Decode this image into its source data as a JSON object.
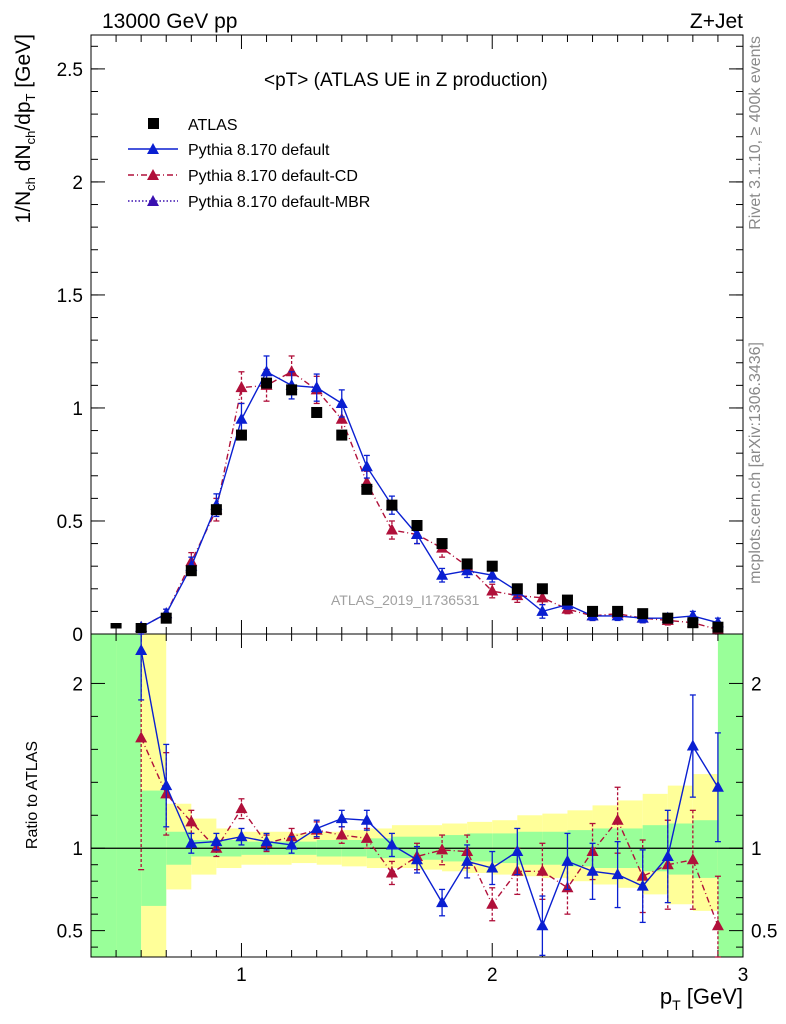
{
  "header": {
    "left": "13000 GeV pp",
    "right": "Z+Jet"
  },
  "side": {
    "top": "Rivet 3.1.10, ≥ 400k events",
    "bottom": "mcplots.cern.ch [arXiv:1306.3436]"
  },
  "colors": {
    "data": "#000000",
    "default": "#0a1fd1",
    "cd": "#b0103a",
    "mbr": "#3a10b0",
    "band_inner": "#99ff99",
    "band_outer": "#ffff99",
    "watermark": "#a0a0a0"
  },
  "chart_data": [
    {
      "type": "line",
      "title": "<pT> (ATLAS UE in Z production)",
      "ylabel": "1/N_ch dN_ch/dp_T [GeV]",
      "xlim": [
        0.4,
        3.0
      ],
      "ylim": [
        0,
        2.65
      ],
      "yticks": [
        "0",
        "0.5",
        "1",
        "1.5",
        "2",
        "2.5"
      ],
      "watermark": "ATLAS_2019_I1736531",
      "legend": [
        "ATLAS",
        "Pythia 8.170 default",
        "Pythia 8.170 default-CD",
        "Pythia 8.170 default-MBR"
      ],
      "legend_position": "top-left",
      "x": [
        0.5,
        0.6,
        0.7,
        0.8,
        0.9,
        1.0,
        1.1,
        1.2,
        1.3,
        1.4,
        1.5,
        1.6,
        1.7,
        1.8,
        1.9,
        2.0,
        2.1,
        2.2,
        2.3,
        2.4,
        2.5,
        2.6,
        2.7,
        2.8,
        2.9
      ],
      "series": [
        {
          "name": "ATLAS",
          "style": "marker",
          "values": [
            0.0,
            0.02,
            0.07,
            0.28,
            0.55,
            0.88,
            1.11,
            1.08,
            0.98,
            0.88,
            0.64,
            0.57,
            0.48,
            0.4,
            0.31,
            0.3,
            0.2,
            0.2,
            0.15,
            0.1,
            0.1,
            0.09,
            0.07,
            0.05,
            0.03
          ]
        },
        {
          "name": "Pythia 8.170 default",
          "style": "solid",
          "values": [
            null,
            0.03,
            0.09,
            0.3,
            0.57,
            0.95,
            1.16,
            1.1,
            1.09,
            1.02,
            0.74,
            0.57,
            0.44,
            0.26,
            0.28,
            0.26,
            0.19,
            0.1,
            0.13,
            0.08,
            0.08,
            0.07,
            0.07,
            0.08,
            0.05
          ]
        },
        {
          "name": "Pythia 8.170 default-CD",
          "style": "dashdot",
          "values": [
            null,
            0.03,
            0.09,
            0.32,
            0.55,
            1.09,
            1.1,
            1.16,
            1.08,
            0.95,
            0.67,
            0.46,
            0.44,
            0.38,
            0.3,
            0.19,
            0.17,
            0.16,
            0.11,
            0.08,
            0.09,
            0.07,
            0.06,
            0.05,
            0.02
          ]
        }
      ],
      "errors": {
        "Pythia 8.170 default": [
          null,
          0.01,
          0.02,
          0.04,
          0.05,
          0.07,
          0.07,
          0.06,
          0.06,
          0.06,
          0.05,
          0.04,
          0.04,
          0.03,
          0.03,
          0.03,
          0.03,
          0.03,
          0.02,
          0.02,
          0.02,
          0.02,
          0.02,
          0.02,
          0.02
        ],
        "Pythia 8.170 default-CD": [
          null,
          0.01,
          0.02,
          0.04,
          0.05,
          0.07,
          0.07,
          0.07,
          0.06,
          0.06,
          0.05,
          0.04,
          0.04,
          0.04,
          0.03,
          0.03,
          0.03,
          0.03,
          0.02,
          0.02,
          0.02,
          0.02,
          0.02,
          0.02,
          0.02
        ]
      }
    },
    {
      "type": "line",
      "ylabel": "Ratio to ATLAS",
      "xlabel": "p_T [GeV]",
      "xlim": [
        0.4,
        3.0
      ],
      "ylim": [
        0.34,
        2.3
      ],
      "yticks": [
        "0.5",
        "1",
        "2"
      ],
      "xticks": [
        "1",
        "2",
        "3"
      ],
      "x": [
        0.6,
        0.7,
        0.8,
        0.9,
        1.0,
        1.1,
        1.2,
        1.3,
        1.4,
        1.5,
        1.6,
        1.7,
        1.8,
        1.9,
        2.0,
        2.1,
        2.2,
        2.3,
        2.4,
        2.5,
        2.6,
        2.7,
        2.8,
        2.9
      ],
      "series": [
        {
          "name": "Pythia 8.170 default",
          "style": "solid",
          "values": [
            2.2,
            1.38,
            1.03,
            1.04,
            1.07,
            1.04,
            1.02,
            1.12,
            1.18,
            1.17,
            1.02,
            0.93,
            0.67,
            0.92,
            0.88,
            0.98,
            0.53,
            0.92,
            0.86,
            0.84,
            0.77,
            0.95,
            1.62,
            1.37
          ],
          "errors": [
            0.3,
            0.25,
            0.06,
            0.05,
            0.05,
            0.05,
            0.05,
            0.05,
            0.05,
            0.06,
            0.07,
            0.08,
            0.08,
            0.1,
            0.1,
            0.14,
            0.18,
            0.17,
            0.17,
            0.2,
            0.22,
            0.28,
            0.31,
            0.33
          ]
        },
        {
          "name": "Pythia 8.170 default-CD",
          "style": "dashdot",
          "values": [
            1.67,
            1.33,
            1.16,
            1.0,
            1.24,
            1.03,
            1.07,
            1.11,
            1.08,
            1.06,
            0.85,
            0.95,
            0.99,
            0.98,
            0.66,
            0.86,
            0.86,
            0.76,
            0.98,
            1.17,
            0.83,
            0.9,
            0.93,
            0.53
          ],
          "errors": [
            0.8,
            0.25,
            0.07,
            0.05,
            0.06,
            0.05,
            0.05,
            0.05,
            0.05,
            0.06,
            0.07,
            0.08,
            0.09,
            0.1,
            0.1,
            0.14,
            0.17,
            0.16,
            0.17,
            0.2,
            0.22,
            0.27,
            0.3,
            0.3
          ]
        }
      ],
      "bands": {
        "edges": [
          0.4,
          0.5,
          0.6,
          0.7,
          0.8,
          0.9,
          1.0,
          1.1,
          1.2,
          1.3,
          1.4,
          1.5,
          1.6,
          1.7,
          1.8,
          1.9,
          2.0,
          2.1,
          2.2,
          2.3,
          2.4,
          2.5,
          2.6,
          2.7,
          2.8,
          2.9,
          3.0
        ],
        "green": [
          [
            0.34,
            2.3
          ],
          [
            0.34,
            2.3
          ],
          [
            0.65,
            1.35
          ],
          [
            0.9,
            1.1
          ],
          [
            0.95,
            1.05
          ],
          [
            0.95,
            1.05
          ],
          [
            0.96,
            1.04
          ],
          [
            0.96,
            1.04
          ],
          [
            0.96,
            1.04
          ],
          [
            0.95,
            1.05
          ],
          [
            0.95,
            1.05
          ],
          [
            0.94,
            1.06
          ],
          [
            0.94,
            1.07
          ],
          [
            0.93,
            1.07
          ],
          [
            0.92,
            1.08
          ],
          [
            0.92,
            1.09
          ],
          [
            0.91,
            1.09
          ],
          [
            0.9,
            1.1
          ],
          [
            0.9,
            1.1
          ],
          [
            0.89,
            1.11
          ],
          [
            0.88,
            1.12
          ],
          [
            0.88,
            1.12
          ],
          [
            0.86,
            1.14
          ],
          [
            0.84,
            1.15
          ],
          [
            0.82,
            1.17
          ],
          [
            0.34,
            2.3
          ]
        ],
        "yellow": [
          [
            0.34,
            2.3
          ],
          [
            0.34,
            2.3
          ],
          [
            0.34,
            2.3
          ],
          [
            0.75,
            1.27
          ],
          [
            0.84,
            1.18
          ],
          [
            0.88,
            1.12
          ],
          [
            0.9,
            1.1
          ],
          [
            0.9,
            1.1
          ],
          [
            0.91,
            1.09
          ],
          [
            0.9,
            1.1
          ],
          [
            0.89,
            1.11
          ],
          [
            0.88,
            1.12
          ],
          [
            0.88,
            1.14
          ],
          [
            0.87,
            1.14
          ],
          [
            0.86,
            1.15
          ],
          [
            0.85,
            1.16
          ],
          [
            0.84,
            1.17
          ],
          [
            0.83,
            1.2
          ],
          [
            0.82,
            1.21
          ],
          [
            0.8,
            1.23
          ],
          [
            0.78,
            1.26
          ],
          [
            0.76,
            1.29
          ],
          [
            0.72,
            1.33
          ],
          [
            0.66,
            1.38
          ],
          [
            0.62,
            1.45
          ],
          [
            0.34,
            2.3
          ]
        ]
      }
    }
  ]
}
